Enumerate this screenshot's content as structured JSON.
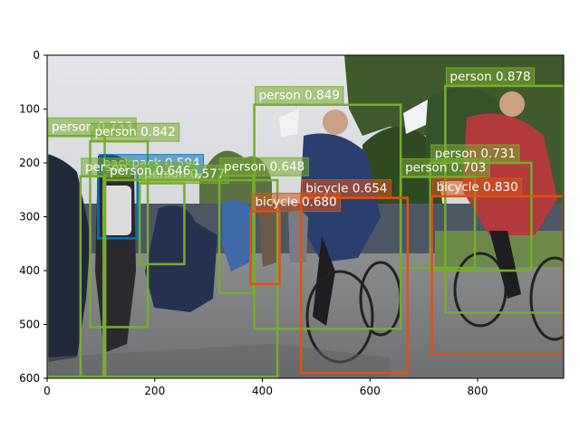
{
  "figure": {
    "xlim": [
      0,
      960
    ],
    "ylim": [
      600,
      0
    ],
    "xticks": [
      0,
      200,
      400,
      600,
      800
    ],
    "yticks": [
      0,
      100,
      200,
      300,
      400,
      500,
      600
    ]
  },
  "colors": {
    "person": "#77ac30",
    "bicycle": "#d95319",
    "backpack": "#0072bd",
    "label_text": "#ffffff"
  },
  "detections": [
    {
      "cls": "person",
      "label": "person 0.878",
      "x0": 740,
      "y0": 57,
      "x1": 960,
      "y1": 478
    },
    {
      "cls": "person",
      "label": "person 0.849",
      "x0": 385,
      "y0": 92,
      "x1": 657,
      "y1": 508
    },
    {
      "cls": "person",
      "label": "person 0.733",
      "x0": 0,
      "y0": 150,
      "x1": 107,
      "y1": 597
    },
    {
      "cls": "person",
      "label": "person 0.842",
      "x0": 80,
      "y0": 160,
      "x1": 187,
      "y1": 505
    },
    {
      "cls": "backpack",
      "label": "backpack 0.594",
      "x0": 95,
      "y0": 218,
      "x1": 168,
      "y1": 340
    },
    {
      "cls": "person",
      "label": "person",
      "x0": 62,
      "y0": 225,
      "x1": 105,
      "y1": 597
    },
    {
      "cls": "person",
      "label": "person 0.577",
      "x0": 172,
      "y0": 238,
      "x1": 255,
      "y1": 388
    },
    {
      "cls": "person",
      "label": "person 0.646",
      "x0": 108,
      "y0": 232,
      "x1": 428,
      "y1": 597
    },
    {
      "cls": "person",
      "label": "person 0.648",
      "x0": 320,
      "y0": 224,
      "x1": 383,
      "y1": 442
    },
    {
      "cls": "person",
      "label": "person 0.731",
      "x0": 712,
      "y0": 200,
      "x1": 900,
      "y1": 400
    },
    {
      "cls": "person",
      "label": "person 0.703",
      "x0": 657,
      "y0": 226,
      "x1": 795,
      "y1": 395
    },
    {
      "cls": "bicycle",
      "label": "bicycle 0.830",
      "x0": 715,
      "y0": 262,
      "x1": 960,
      "y1": 555
    },
    {
      "cls": "bicycle",
      "label": "bicycle 0.654",
      "x0": 472,
      "y0": 265,
      "x1": 670,
      "y1": 590
    },
    {
      "cls": "bicycle",
      "label": "bicycle 0.680",
      "x0": 378,
      "y0": 290,
      "x1": 432,
      "y1": 425
    }
  ]
}
